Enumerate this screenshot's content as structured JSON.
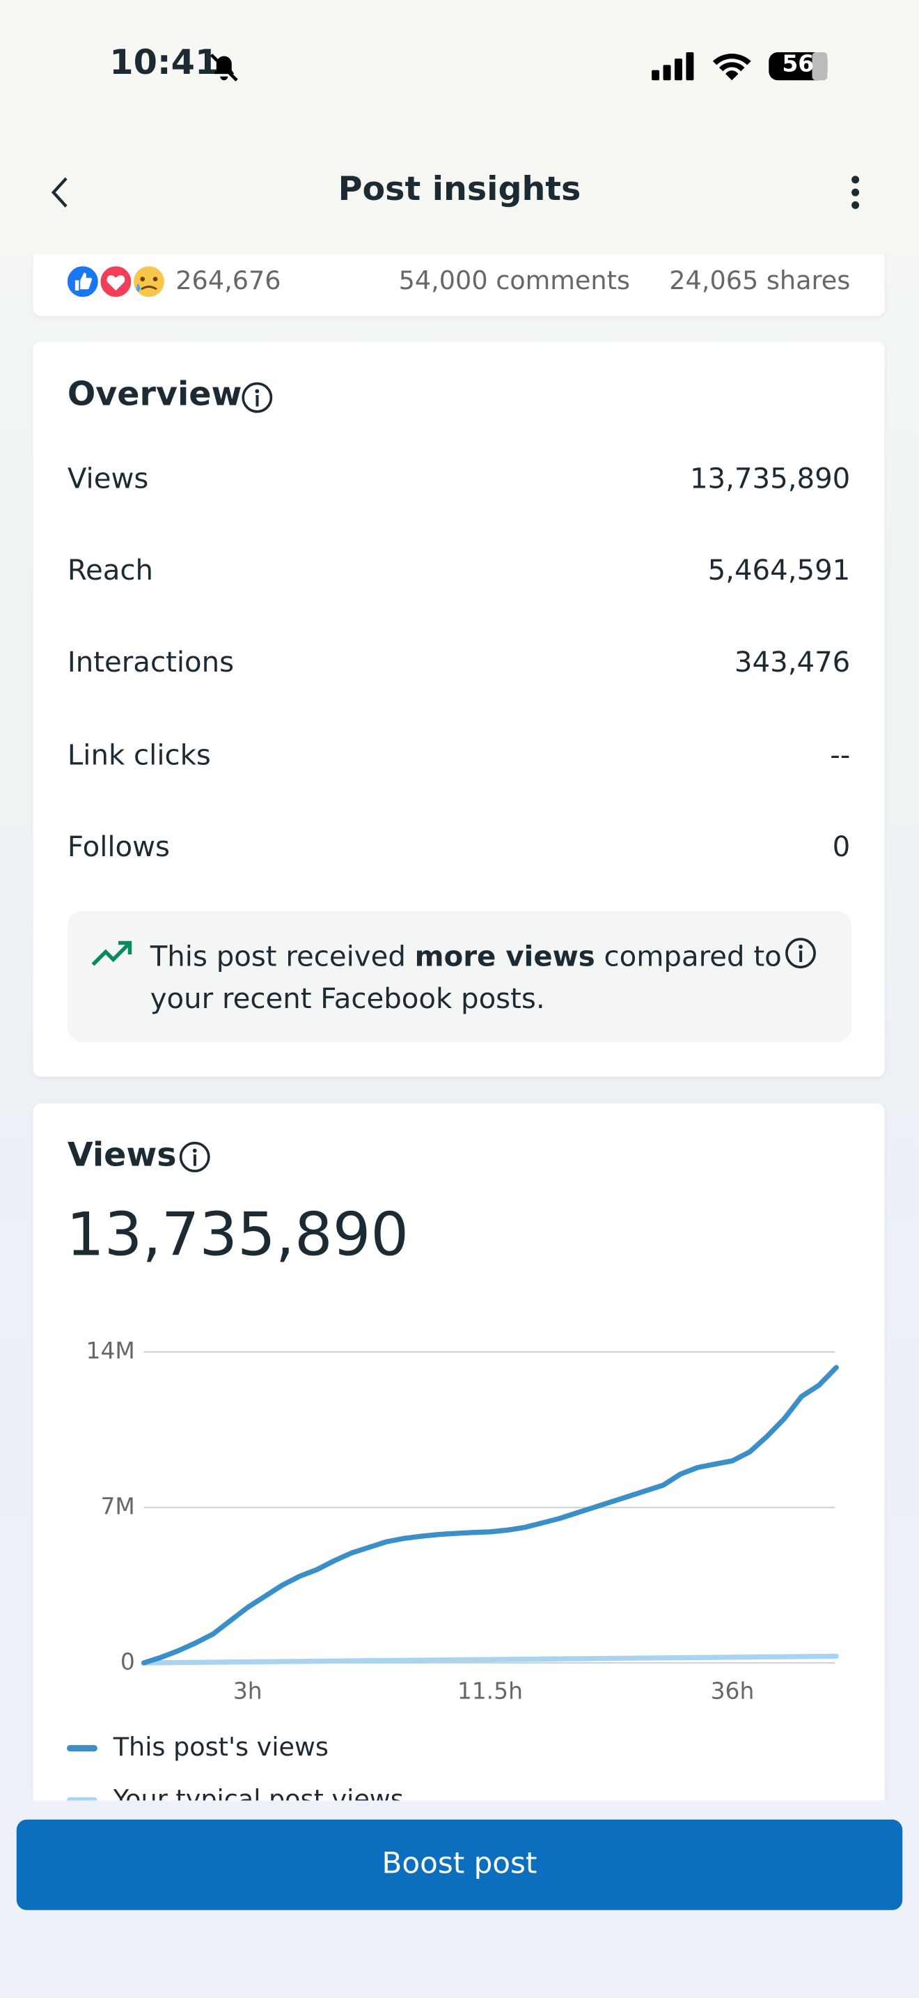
{
  "status_bar": {
    "time": "10:41",
    "battery": "56"
  },
  "header": {
    "title": "Post insights"
  },
  "reactions": {
    "count": "264,676",
    "comments": "54,000 comments",
    "shares": "24,065 shares"
  },
  "overview": {
    "title": "Overview",
    "rows": [
      {
        "label": "Views",
        "value": "13,735,890"
      },
      {
        "label": "Reach",
        "value": "5,464,591"
      },
      {
        "label": "Interactions",
        "value": "343,476"
      },
      {
        "label": "Link clicks",
        "value": "--"
      },
      {
        "label": "Follows",
        "value": "0"
      }
    ],
    "note": {
      "parts": [
        "This post received ",
        "more views",
        " compared to your recent Facebook posts."
      ]
    }
  },
  "chart_data": {
    "type": "line",
    "title": "Views",
    "total": "13,735,890",
    "categories": [
      null,
      null,
      null,
      null,
      null,
      null,
      "3h",
      null,
      null,
      null,
      null,
      null,
      null,
      null,
      null,
      null,
      null,
      null,
      null,
      null,
      "11.5h",
      null,
      null,
      null,
      null,
      null,
      null,
      null,
      null,
      null,
      null,
      null,
      null,
      null,
      "36h",
      null,
      null,
      null,
      null,
      null,
      null
    ],
    "series": [
      {
        "name": "This post's views",
        "color": "#3a8fc8",
        "values": [
          0,
          250000,
          550000,
          900000,
          1300000,
          1900000,
          2500000,
          3000000,
          3500000,
          3900000,
          4200000,
          4600000,
          4950000,
          5200000,
          5450000,
          5600000,
          5700000,
          5780000,
          5830000,
          5870000,
          5900000,
          5980000,
          6100000,
          6300000,
          6500000,
          6750000,
          7000000,
          7250000,
          7500000,
          7750000,
          8000000,
          8500000,
          8800000,
          8950000,
          9100000,
          9500000,
          10200000,
          11000000,
          12000000,
          12500000,
          13300000
        ]
      },
      {
        "name": "Your typical post views",
        "color": "#a8d4f2",
        "values": [
          0,
          7500,
          15000,
          22500,
          30000,
          37500,
          45000,
          52500,
          60000,
          67500,
          75000,
          82500,
          90000,
          97500,
          105000,
          112500,
          120000,
          127500,
          135000,
          142500,
          150000,
          157500,
          165000,
          172500,
          180000,
          187500,
          195000,
          202500,
          210000,
          217500,
          225000,
          232500,
          240000,
          247500,
          255000,
          262500,
          270000,
          277500,
          285000,
          292500,
          300000
        ]
      }
    ],
    "ylim": [
      0,
      14000000
    ],
    "yticks": [
      0,
      {
        "value": 7000000,
        "label": "7M"
      },
      {
        "value": 14000000,
        "label": "14M"
      }
    ],
    "grid": true
  },
  "button": "Boost post"
}
